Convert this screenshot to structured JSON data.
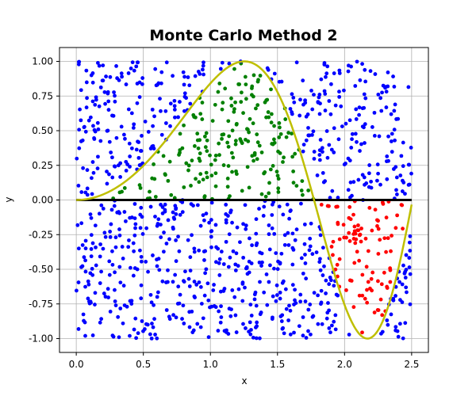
{
  "chart_data": {
    "type": "scatter",
    "title": "Monte Carlo Method 2",
    "xlabel": "x",
    "ylabel": "y",
    "xlim": [
      -0.125,
      2.625
    ],
    "ylim": [
      -1.1,
      1.1
    ],
    "x_ticks": [
      "0.0",
      "0.5",
      "1.0",
      "1.5",
      "2.0",
      "2.5"
    ],
    "x_tick_values": [
      0.0,
      0.5,
      1.0,
      1.5,
      2.0,
      2.5
    ],
    "y_ticks": [
      "1.00",
      "0.75",
      "0.50",
      "0.25",
      "0.00",
      "-0.25",
      "-0.50",
      "-0.75",
      "-1.00"
    ],
    "y_tick_values": [
      1.0,
      0.75,
      0.5,
      0.25,
      0.0,
      -0.25,
      -0.5,
      -0.75,
      -1.0
    ],
    "grid": true,
    "function": "y = sin(x^2)",
    "domain": [
      0.0,
      2.5
    ],
    "sample_count": 1200,
    "random_seed": 7,
    "colors": {
      "outside": "#0000ff",
      "positive_area": "#008000",
      "negative_area": "#ff0000",
      "curve": "#bfbf00",
      "baseline": "#000000",
      "grid": "#b0b0b0"
    }
  }
}
